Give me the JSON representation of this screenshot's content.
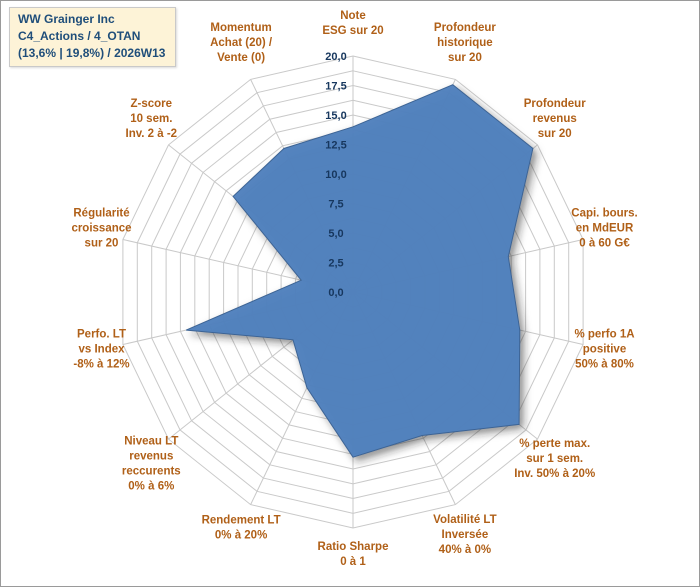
{
  "title": {
    "line1": "WW Grainger Inc",
    "line2": "C4_Actions / 4_OTAN",
    "line3": "(13,6% | 19,8%) / 2026W13"
  },
  "chart_data": {
    "type": "radar",
    "title": "WW Grainger Inc C4_Actions / 4_OTAN (13,6% | 19,8%) / 2026W13",
    "rmin": 0,
    "rmax": 20,
    "tick_step": 2.5,
    "minor_step": 1.25,
    "ticks": [
      "0,0",
      "2,5",
      "5,0",
      "7,5",
      "10,0",
      "12,5",
      "15,0",
      "17,5",
      "20,0"
    ],
    "legend_position": "none",
    "grid": true,
    "categories": [
      "Note ESG sur 20",
      "Profondeur historique sur 20",
      "Profondeur revenus sur 20",
      "Capi. bours. en MdEUR 0 à 60 G€",
      "% perfo 1A positive 50% à 80%",
      "% perte max. sur 1 sem. Inv. 50% à 20%",
      "Volatilité LT Inversée 40% à 0%",
      "Ratio Sharpe 0 à 1",
      "Rendement LT 0% à 20%",
      "Niveau LT revenus reccurents 0% à 6%",
      "Perfo. LT vs Index -8% à 12%",
      "Régularité croissance sur 20",
      "Z-score 10 sem. Inv. 2 à -2",
      "Momentum Achat (20) / Vente (0)"
    ],
    "axes": [
      {
        "lines": [
          "Note",
          "ESG sur 20"
        ]
      },
      {
        "lines": [
          "Profondeur",
          "historique",
          "sur 20"
        ]
      },
      {
        "lines": [
          "Profondeur",
          "revenus",
          "sur 20"
        ]
      },
      {
        "lines": [
          "Capi. bours.",
          "en MdEUR",
          "0 à 60 G€"
        ]
      },
      {
        "lines": [
          "% perfo 1A",
          "positive",
          "50% à 80%"
        ]
      },
      {
        "lines": [
          "% perte max.",
          "sur 1 sem.",
          "Inv. 50% à 20%"
        ]
      },
      {
        "lines": [
          "Volatilité LT",
          "Inversée",
          "40% à 0%"
        ]
      },
      {
        "lines": [
          "Ratio Sharpe",
          "0 à 1"
        ]
      },
      {
        "lines": [
          "Rendement LT",
          "0% à 20%"
        ]
      },
      {
        "lines": [
          "Niveau LT",
          "revenus",
          "reccurents",
          "0% à 6%"
        ]
      },
      {
        "lines": [
          "Perfo. LT",
          "vs Index",
          "-8% à 12%"
        ]
      },
      {
        "lines": [
          "Régularité",
          "croissance",
          "sur 20"
        ]
      },
      {
        "lines": [
          "Z-score",
          "10 sem.",
          "Inv. 2 à -2"
        ]
      },
      {
        "lines": [
          "Momentum",
          "Achat (20) /",
          "Vente (0)"
        ]
      }
    ],
    "series": [
      {
        "name": "WW Grainger Inc",
        "values": [
          14,
          19.5,
          19.5,
          13.5,
          14.5,
          18,
          13.5,
          14,
          9,
          6.5,
          14.5,
          4.5,
          13,
          13.5
        ]
      }
    ],
    "colors": {
      "fill": "#4f81bd",
      "stroke": "#3d6494",
      "grid": "#c9c9c9",
      "tick_text": "#17375e",
      "label_text": "#b06018",
      "title_text": "#1f4e7a",
      "title_bg": "#fdf3d7"
    }
  }
}
